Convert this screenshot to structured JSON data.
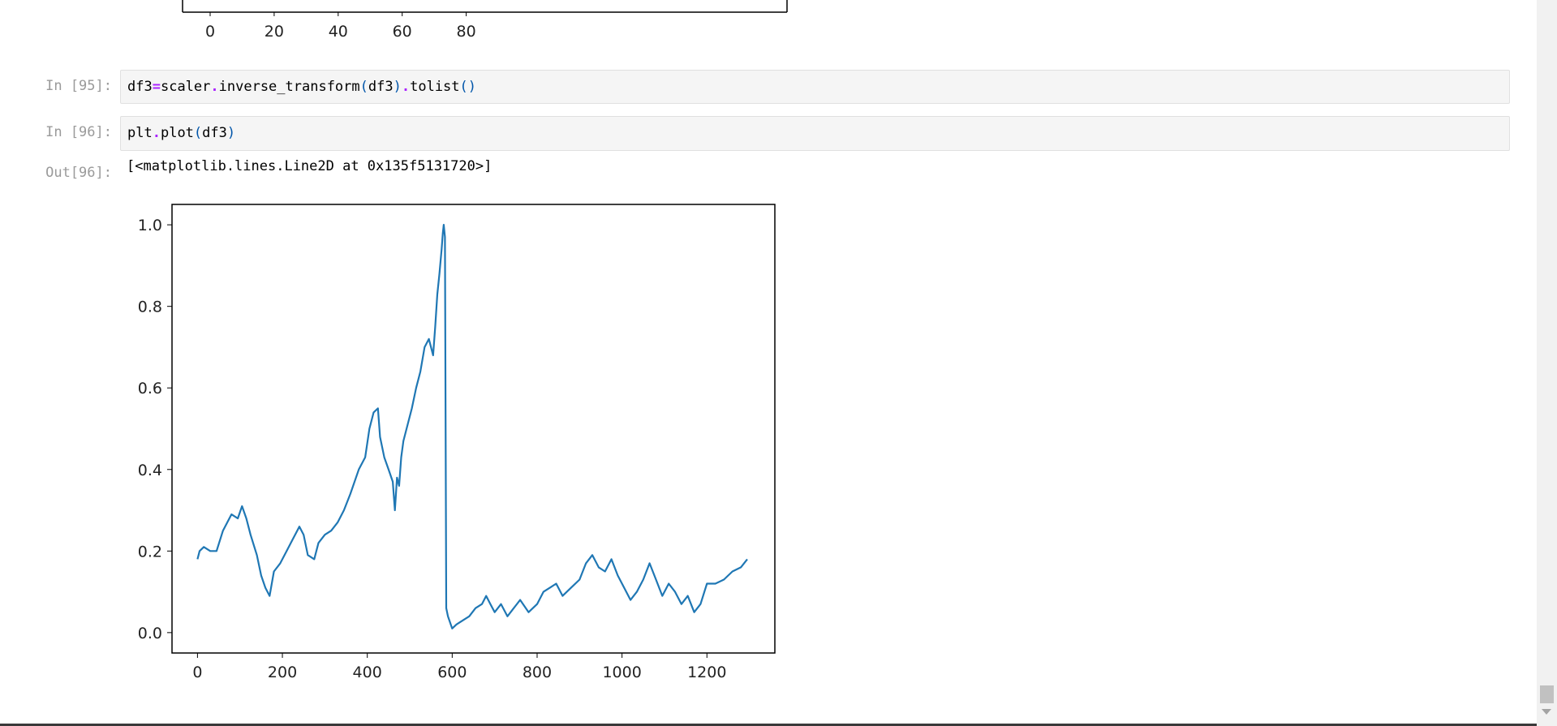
{
  "prev_output": {
    "x_ticks": [
      "0",
      "20",
      "40",
      "60",
      "80"
    ]
  },
  "cells": [
    {
      "prompt": "In [95]:",
      "code_parts": [
        "df3",
        "=",
        "scaler",
        ".",
        "inverse_transform",
        "(",
        "df3",
        ")",
        ".",
        "tolist",
        "()"
      ]
    },
    {
      "prompt": "In [96]:",
      "code_parts": [
        "plt",
        ".",
        "plot",
        "(",
        "df3",
        ")"
      ]
    }
  ],
  "out_prompt": "Out[96]:",
  "output_text": "[<matplotlib.lines.Line2D at 0x135f5131720>]",
  "colors": {
    "line": "#1f77b4",
    "keyword_op": "#aa22ff",
    "paren": "#0055aa"
  },
  "chart_data": {
    "type": "line",
    "title": "",
    "xlabel": "",
    "ylabel": "",
    "xlim": [
      -60,
      1360
    ],
    "ylim": [
      -0.05,
      1.05
    ],
    "x_ticks": [
      "0",
      "200",
      "400",
      "600",
      "800",
      "1000",
      "1200"
    ],
    "y_ticks": [
      "0.0",
      "0.2",
      "0.4",
      "0.6",
      "0.8",
      "1.0"
    ],
    "grid": false,
    "series": [
      {
        "x": [
          0,
          5,
          15,
          30,
          45,
          60,
          80,
          95,
          105,
          115,
          125,
          140,
          150,
          160,
          170,
          180,
          195,
          210,
          225,
          240,
          250,
          260,
          275,
          285,
          300,
          315,
          330,
          345,
          360,
          380,
          395,
          405,
          415,
          425,
          430,
          440,
          450,
          460,
          465,
          470,
          475,
          480,
          485,
          495,
          505,
          515,
          525,
          535,
          545,
          555,
          560,
          565,
          570,
          575,
          578,
          580,
          583,
          586,
          590,
          600,
          610,
          625,
          640,
          655,
          670,
          680,
          690,
          700,
          715,
          730,
          745,
          760,
          780,
          800,
          815,
          830,
          845,
          860,
          880,
          900,
          915,
          930,
          945,
          960,
          975,
          990,
          1005,
          1020,
          1035,
          1050,
          1065,
          1080,
          1095,
          1110,
          1125,
          1140,
          1155,
          1170,
          1185,
          1200,
          1220,
          1240,
          1260,
          1280,
          1295
        ],
        "y": [
          0.18,
          0.2,
          0.21,
          0.2,
          0.2,
          0.25,
          0.29,
          0.28,
          0.31,
          0.28,
          0.24,
          0.19,
          0.14,
          0.11,
          0.09,
          0.15,
          0.17,
          0.2,
          0.23,
          0.26,
          0.24,
          0.19,
          0.18,
          0.22,
          0.24,
          0.25,
          0.27,
          0.3,
          0.34,
          0.4,
          0.43,
          0.5,
          0.54,
          0.55,
          0.48,
          0.43,
          0.4,
          0.37,
          0.3,
          0.38,
          0.36,
          0.43,
          0.47,
          0.51,
          0.55,
          0.6,
          0.64,
          0.7,
          0.72,
          0.68,
          0.75,
          0.83,
          0.88,
          0.94,
          0.98,
          1.0,
          0.97,
          0.06,
          0.04,
          0.01,
          0.02,
          0.03,
          0.04,
          0.06,
          0.07,
          0.09,
          0.07,
          0.05,
          0.07,
          0.04,
          0.06,
          0.08,
          0.05,
          0.07,
          0.1,
          0.11,
          0.12,
          0.09,
          0.11,
          0.13,
          0.17,
          0.19,
          0.16,
          0.15,
          0.18,
          0.14,
          0.11,
          0.08,
          0.1,
          0.13,
          0.17,
          0.13,
          0.09,
          0.12,
          0.1,
          0.07,
          0.09,
          0.05,
          0.07,
          0.12,
          0.12,
          0.13,
          0.15,
          0.16,
          0.18
        ]
      }
    ]
  }
}
